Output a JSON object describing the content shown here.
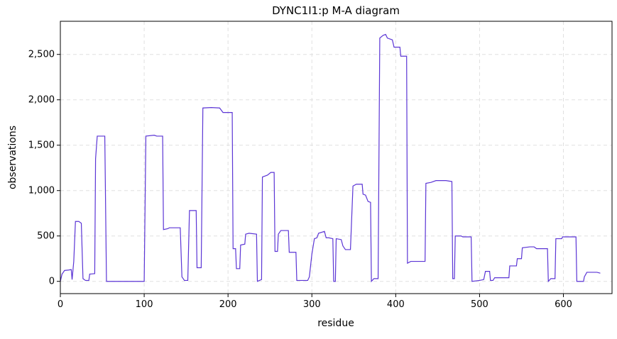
{
  "chart_data": {
    "type": "line",
    "title": "DYNC1I1:p M-A diagram",
    "x_label": "residue",
    "y_label": "observations",
    "x": [
      0,
      2,
      5,
      10,
      13,
      14,
      16,
      18,
      22,
      25,
      27,
      30,
      34,
      35,
      41,
      42,
      44,
      53,
      55,
      100,
      102,
      112,
      115,
      122,
      123,
      128,
      130,
      143,
      145,
      148,
      152,
      154,
      162,
      163,
      168,
      170,
      180,
      190,
      194,
      205,
      206,
      209,
      210,
      214,
      215,
      220,
      221,
      225,
      234,
      235,
      240,
      241,
      247,
      251,
      255,
      256,
      259,
      260,
      263,
      272,
      273,
      281,
      282,
      295,
      297,
      300,
      303,
      306,
      308,
      315,
      317,
      320,
      325,
      326,
      328,
      329,
      335,
      337,
      340,
      346,
      349,
      353,
      360,
      361,
      364,
      367,
      370,
      371,
      374,
      379,
      381,
      385,
      388,
      390,
      396,
      398,
      405,
      406,
      413,
      414,
      418,
      435,
      436,
      442,
      448,
      460,
      467,
      468,
      470,
      471,
      478,
      480,
      490,
      491,
      500,
      505,
      507,
      512,
      513,
      516,
      518,
      535,
      536,
      544,
      545,
      550,
      551,
      560,
      565,
      568,
      575,
      581,
      582,
      585,
      590,
      591,
      598,
      599,
      615,
      616,
      624,
      625,
      628,
      633,
      640,
      644
    ],
    "series": [
      {
        "name": "observations",
        "color": "#5b35d5",
        "values": [
          0,
          80,
          120,
          125,
          130,
          20,
          220,
          660,
          660,
          640,
          30,
          10,
          10,
          80,
          85,
          1350,
          1600,
          1600,
          0,
          0,
          1600,
          1610,
          1600,
          1600,
          570,
          580,
          590,
          590,
          50,
          10,
          10,
          780,
          780,
          150,
          150,
          1910,
          1915,
          1910,
          1860,
          1860,
          360,
          360,
          140,
          140,
          400,
          410,
          520,
          530,
          520,
          0,
          20,
          1150,
          1170,
          1200,
          1200,
          330,
          330,
          520,
          560,
          560,
          320,
          320,
          10,
          10,
          50,
          300,
          470,
          480,
          530,
          550,
          480,
          480,
          470,
          0,
          0,
          470,
          460,
          390,
          350,
          350,
          1050,
          1070,
          1070,
          960,
          950,
          880,
          870,
          0,
          30,
          30,
          2680,
          2710,
          2720,
          2680,
          2660,
          2580,
          2580,
          2480,
          2480,
          200,
          220,
          220,
          1080,
          1090,
          1110,
          1110,
          1100,
          30,
          30,
          500,
          500,
          490,
          490,
          0,
          10,
          20,
          110,
          110,
          10,
          10,
          40,
          40,
          170,
          170,
          250,
          250,
          370,
          380,
          380,
          360,
          360,
          360,
          0,
          30,
          30,
          470,
          470,
          490,
          490,
          0,
          0,
          50,
          100,
          100,
          100,
          90
        ]
      }
    ],
    "xlim": [
      0,
      658
    ],
    "ylim": [
      -135,
      2865
    ],
    "xticks": [
      0,
      100,
      200,
      300,
      400,
      500,
      600
    ],
    "yticks": [
      0,
      500,
      {
        "value": 1000,
        "label": "1,000"
      },
      {
        "value": 1500,
        "label": "1,500"
      },
      {
        "value": 2000,
        "label": "2,000"
      },
      {
        "value": 2500,
        "label": "2,500"
      }
    ],
    "grid": true
  }
}
